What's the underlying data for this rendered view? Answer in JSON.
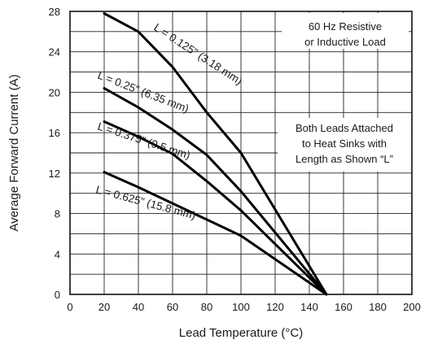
{
  "chart_data": {
    "type": "line",
    "xlabel": "Lead Temperature (°C)",
    "ylabel": "Average Forward Current (A)",
    "xlim": [
      0,
      200
    ],
    "ylim": [
      0,
      28
    ],
    "xticks": [
      "0",
      "20",
      "40",
      "60",
      "80",
      "100",
      "120",
      "140",
      "160",
      "180",
      "200"
    ],
    "yticks": [
      "0",
      "4",
      "8",
      "12",
      "16",
      "20",
      "24",
      "28"
    ],
    "grid": true,
    "annotations": [
      {
        "lines": [
          "60 Hz Resistive",
          "or Inductive Load"
        ]
      },
      {
        "lines": [
          "Both Leads Attached",
          "to Heat Sinks with",
          "Length as Shown “L”"
        ]
      }
    ],
    "series": [
      {
        "name": "L = 0.125\" (3.18 mm)",
        "x": [
          20,
          40,
          60,
          80,
          100,
          150
        ],
        "y": [
          27.8,
          26.0,
          22.5,
          18.0,
          14.0,
          0
        ]
      },
      {
        "name": "L = 0.25\" (6.35 mm)",
        "x": [
          20,
          40,
          60,
          80,
          100,
          150
        ],
        "y": [
          20.4,
          18.5,
          16.3,
          13.8,
          10.2,
          0
        ]
      },
      {
        "name": "L = 0.375\" (9.5 mm)",
        "x": [
          20,
          40,
          60,
          80,
          100,
          150
        ],
        "y": [
          17.1,
          15.6,
          13.9,
          11.2,
          8.3,
          0
        ]
      },
      {
        "name": "L = 0.625\" (15.8 mm)",
        "x": [
          20,
          40,
          60,
          80,
          100,
          150
        ],
        "y": [
          12.1,
          10.6,
          9.0,
          7.4,
          5.8,
          0
        ]
      }
    ]
  }
}
